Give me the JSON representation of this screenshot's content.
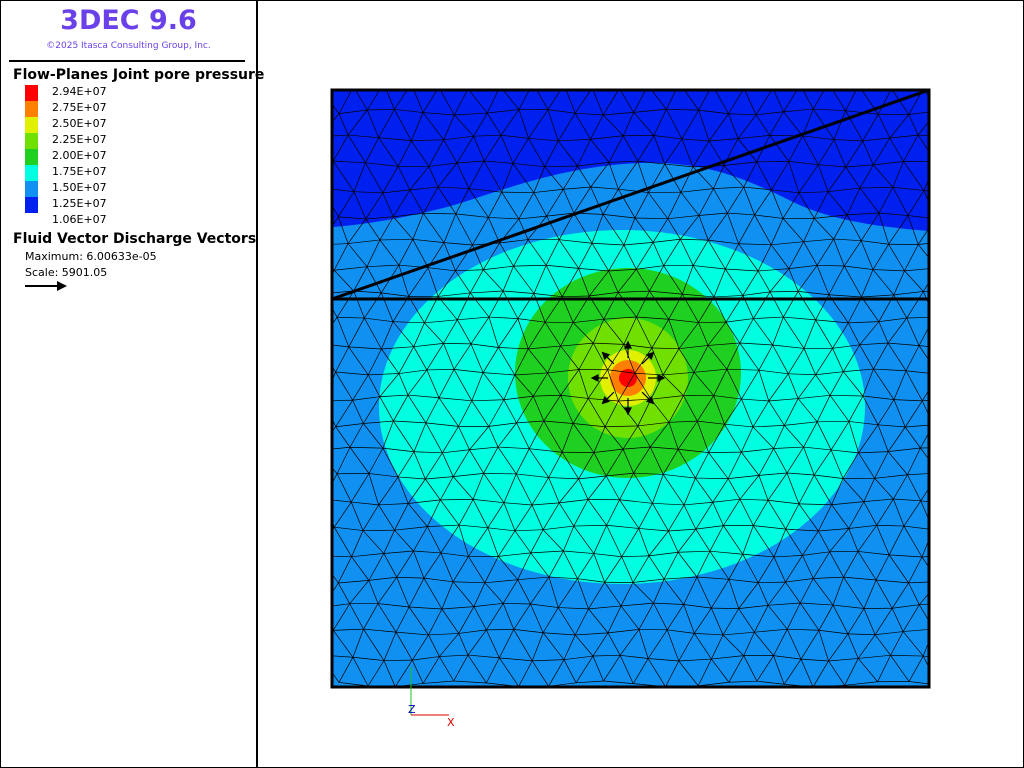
{
  "header": {
    "title": "3DEC 9.6",
    "copyright": "©2025 Itasca Consulting Group, Inc."
  },
  "legend": {
    "title": "Flow-Planes Joint pore pressure",
    "labels": [
      "2.94E+07",
      "2.75E+07",
      "2.50E+07",
      "2.25E+07",
      "2.00E+07",
      "1.75E+07",
      "1.50E+07",
      "1.25E+07",
      "1.06E+07"
    ],
    "colors": [
      "#ff0000",
      "#ff8000",
      "#e0f000",
      "#70e000",
      "#20d020",
      "#00ffe0",
      "#1090f0",
      "#0020f0"
    ]
  },
  "vectors": {
    "title": "Fluid Vector Discharge Vectors",
    "maximum": "Maximum: 6.00633e-05",
    "scale": "Scale: 5901.05"
  },
  "axes": {
    "z": "Z",
    "x": "X"
  }
}
